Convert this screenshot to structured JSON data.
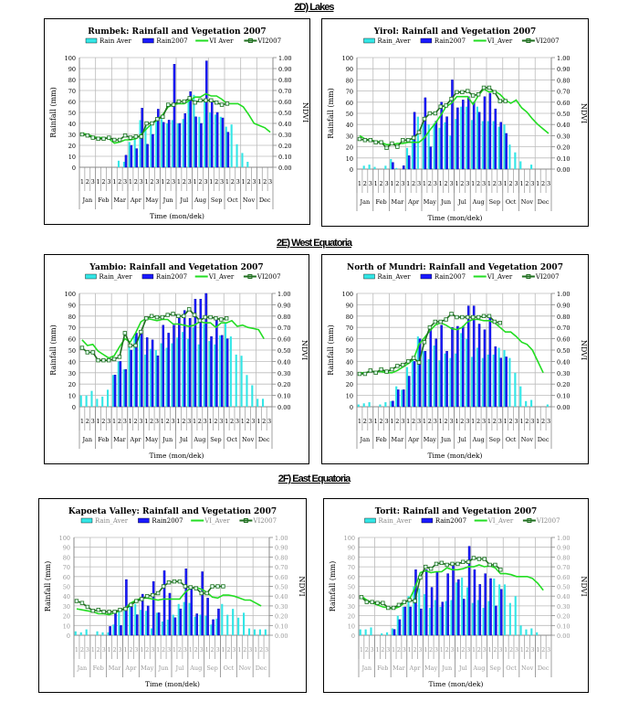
{
  "sections": [
    "2D) Lakes",
    "2E) West Equatoria",
    "2F) East Equatoria"
  ],
  "colors": {
    "rain_aver": "#33e6e6",
    "rain2007": "#1a1aff",
    "vi_aver": "#22dd22",
    "vi2007": "#1f6f1f",
    "grid": "#bbbbbb"
  },
  "chart_data": [
    {
      "type": "bar+line",
      "title": "Rumbek: Rainfall and Vegetation 2007",
      "legend": [
        "Rain Aver",
        "Rain2007",
        "VI Aver",
        "VI2007"
      ],
      "xlabel": "Time (mon/dek)",
      "ylabel": "Rainfall (mm)",
      "y2label": "NDVI",
      "ylim": [
        0,
        100
      ],
      "y2lim": [
        0,
        1
      ],
      "yticks": [
        "0",
        "10",
        "20",
        "30",
        "40",
        "50",
        "60",
        "70",
        "80",
        "90",
        "100"
      ],
      "y2ticks": [
        "0.00",
        "0.10",
        "0.20",
        "0.30",
        "0.40",
        "0.50",
        "0.60",
        "0.70",
        "0.80",
        "0.90",
        "1.00"
      ],
      "months": [
        "Jan",
        "Feb",
        "Mar",
        "Apr",
        "May",
        "Jun",
        "Jul",
        "Aug",
        "Sep",
        "Oct",
        "Nov",
        "Dec"
      ],
      "dekads": [
        "1",
        "2",
        "3"
      ],
      "rain_aver": [
        0,
        0,
        0,
        0,
        0,
        0,
        0,
        6,
        5,
        23,
        26,
        43,
        38,
        40,
        44,
        44,
        40,
        43,
        40,
        44,
        63,
        66,
        46,
        62,
        50,
        48,
        46,
        37,
        39,
        21,
        13,
        5,
        0,
        0,
        0,
        0
      ],
      "rain2007": [
        0,
        0,
        0,
        0,
        0,
        0,
        0,
        0,
        11,
        20,
        17,
        54,
        21,
        30,
        53,
        41,
        43,
        94,
        40,
        49,
        69,
        46,
        40,
        97,
        61,
        50,
        45,
        32,
        0,
        0,
        0,
        0,
        0,
        0,
        0,
        0
      ],
      "vi_aver": [
        0.31,
        0.3,
        0.28,
        0.27,
        0.27,
        0.26,
        0.22,
        0.23,
        0.25,
        0.25,
        0.26,
        0.3,
        0.35,
        0.4,
        0.43,
        0.48,
        0.55,
        0.57,
        0.58,
        0.58,
        0.61,
        0.64,
        0.64,
        0.67,
        0.65,
        0.65,
        0.62,
        0.58,
        0.58,
        0.58,
        0.55,
        0.48,
        0.4,
        0.38,
        0.36,
        0.32
      ],
      "vi2007": [
        0.3,
        0.29,
        0.27,
        0.26,
        0.26,
        0.27,
        0.25,
        0.25,
        0.29,
        0.27,
        0.28,
        0.28,
        0.4,
        0.4,
        0.44,
        0.46,
        0.57,
        0.57,
        0.6,
        0.6,
        0.63,
        0.59,
        0.61,
        0.61,
        0.61,
        0.59,
        0.57,
        0.58
      ]
    },
    {
      "type": "bar+line",
      "title": "Yirol: Rainfall and Vegetation 2007",
      "legend": [
        "Rain_Aver",
        "Rain2007",
        "VI_Aver",
        "VI2007"
      ],
      "xlabel": "Time (mon/dek)",
      "ylabel": "Rainfall (mm)",
      "y2label": "NDVI",
      "ylim": [
        0,
        100
      ],
      "y2lim": [
        0,
        1
      ],
      "yticks": [
        "0",
        "10",
        "20",
        "30",
        "40",
        "50",
        "60",
        "70",
        "80",
        "90",
        "100"
      ],
      "y2ticks": [
        "0.00",
        "0.10",
        "0.20",
        "0.30",
        "0.40",
        "0.50",
        "0.60",
        "0.70",
        "0.80",
        "0.90",
        "1.00"
      ],
      "months": [
        "Jan",
        "Feb",
        "Mar",
        "Apr",
        "May",
        "Jun",
        "Jul",
        "Aug",
        "Sep",
        "Oct",
        "Nov",
        "Dec"
      ],
      "dekads": [
        "1",
        "2",
        "3"
      ],
      "rain_aver": [
        0,
        3,
        4,
        2,
        0,
        3,
        9,
        1,
        0,
        19,
        27,
        47,
        41,
        40,
        41,
        37,
        42,
        30,
        45,
        56,
        56,
        44,
        56,
        43,
        43,
        43,
        38,
        40,
        22,
        15,
        7,
        0,
        4,
        0,
        0,
        0
      ],
      "rain2007": [
        0,
        0,
        0,
        0,
        0,
        0,
        6,
        0,
        3,
        12,
        51,
        0,
        64,
        20,
        43,
        60,
        47,
        80,
        55,
        62,
        65,
        60,
        51,
        65,
        68,
        54,
        42,
        32,
        0,
        0,
        0,
        0,
        0,
        0,
        0,
        0
      ],
      "vi_aver": [
        0.3,
        0.27,
        0.26,
        0.25,
        0.24,
        0.22,
        0.22,
        0.23,
        0.23,
        0.24,
        0.24,
        0.24,
        0.28,
        0.35,
        0.41,
        0.48,
        0.56,
        0.59,
        0.65,
        0.65,
        0.65,
        0.58,
        0.66,
        0.72,
        0.69,
        0.7,
        0.67,
        0.62,
        0.59,
        0.62,
        0.55,
        0.51,
        0.45,
        0.4,
        0.36,
        0.32
      ],
      "vi2007": [
        0.27,
        0.26,
        0.26,
        0.24,
        0.24,
        0.19,
        0.23,
        0.2,
        0.26,
        0.26,
        0.28,
        0.33,
        0.45,
        0.5,
        0.5,
        0.56,
        0.57,
        0.63,
        0.69,
        0.69,
        0.7,
        0.66,
        0.67,
        0.73,
        0.73,
        0.69,
        0.61,
        0.61
      ]
    },
    {
      "type": "bar+line",
      "title": "Yambio: Rainfall and Vegetation 2007",
      "legend": [
        "Rain_Aver",
        "Rain2007",
        "VI_Aver",
        "VI2007"
      ],
      "xlabel": "Time (mon/dek)",
      "ylabel": "Rainfall (mm)",
      "y2label": "NDVI",
      "ylim": [
        0,
        100
      ],
      "y2lim": [
        0,
        1
      ],
      "yticks": [
        "0",
        "10",
        "20",
        "30",
        "40",
        "50",
        "60",
        "70",
        "80",
        "90",
        "100"
      ],
      "y2ticks": [
        "0.00",
        "0.10",
        "0.20",
        "0.30",
        "0.40",
        "0.50",
        "0.60",
        "0.70",
        "0.80",
        "0.90",
        "1.00"
      ],
      "months": [
        "Jan",
        "Feb",
        "Mar",
        "Apr",
        "May",
        "Jun",
        "Jul",
        "Aug",
        "Sep",
        "Oct",
        "Nov",
        "Dec"
      ],
      "dekads": [
        "1",
        "2",
        "3"
      ],
      "rain_aver": [
        10,
        10,
        14,
        7,
        9,
        15,
        28,
        40,
        33,
        55,
        62,
        62,
        46,
        51,
        50,
        56,
        52,
        56,
        61,
        66,
        60,
        70,
        55,
        73,
        58,
        55,
        63,
        74,
        62,
        46,
        45,
        28,
        19,
        7,
        7,
        0
      ],
      "rain2007": [
        0,
        0,
        0,
        0,
        0,
        0,
        28,
        40,
        33,
        50,
        65,
        65,
        61,
        59,
        45,
        72,
        65,
        72,
        78,
        85,
        78,
        95,
        95,
        100,
        62,
        77,
        63,
        60,
        0,
        0,
        0,
        0,
        0,
        0,
        0,
        0
      ],
      "vi_aver": [
        0.59,
        0.54,
        0.55,
        0.49,
        0.46,
        0.43,
        0.45,
        0.53,
        0.6,
        0.57,
        0.65,
        0.75,
        0.78,
        0.77,
        0.76,
        0.77,
        0.77,
        0.73,
        0.73,
        0.72,
        0.71,
        0.72,
        0.75,
        0.74,
        0.74,
        0.7,
        0.74,
        0.74,
        0.76,
        0.71,
        0.72,
        0.7,
        0.69,
        0.68,
        0.6
      ],
      "vi2007": [
        0.52,
        0.48,
        0.48,
        0.41,
        0.41,
        0.41,
        0.42,
        0.44,
        0.65,
        0.54,
        0.54,
        0.66,
        0.78,
        0.8,
        0.79,
        0.79,
        0.81,
        0.82,
        0.8,
        0.8,
        0.86,
        0.81,
        0.76,
        0.79,
        0.79,
        0.78,
        0.77,
        0.78
      ]
    },
    {
      "type": "bar+line",
      "title": "North of Mundri: Rainfall and Vegetation 2007",
      "legend": [
        "Rain_Aver",
        "Rain2007",
        "VI_Aver",
        "VI2007"
      ],
      "xlabel": "Time (mon/dek)",
      "ylabel": "Rainfall (mm)",
      "y2label": "NDVI",
      "ylim": [
        0,
        100
      ],
      "y2lim": [
        0,
        1
      ],
      "yticks": [
        "0",
        "10",
        "20",
        "30",
        "40",
        "50",
        "60",
        "70",
        "80",
        "90",
        "100"
      ],
      "y2ticks": [
        "0.00",
        "0.10",
        "0.20",
        "0.30",
        "0.40",
        "0.50",
        "0.60",
        "0.70",
        "0.80",
        "0.90",
        "1.00"
      ],
      "months": [
        "Jan",
        "Feb",
        "Mar",
        "Apr",
        "May",
        "Jun",
        "Jul",
        "Aug",
        "Sep",
        "Oct",
        "Nov",
        "Dec"
      ],
      "dekads": [
        "1",
        "2",
        "3"
      ],
      "rain_aver": [
        2,
        3,
        4,
        0,
        2,
        4,
        5,
        18,
        15,
        35,
        43,
        62,
        49,
        42,
        54,
        41,
        47,
        43,
        47,
        65,
        60,
        44,
        52,
        43,
        46,
        46,
        52,
        50,
        43,
        30,
        18,
        5,
        6,
        0,
        0,
        2
      ],
      "rain2007": [
        0,
        0,
        0,
        0,
        0,
        0,
        5,
        15,
        15,
        27,
        40,
        60,
        49,
        70,
        60,
        72,
        49,
        70,
        71,
        71,
        89,
        89,
        73,
        68,
        80,
        53,
        43,
        44,
        0,
        0,
        0,
        0,
        0,
        0,
        0,
        0
      ],
      "vi_aver": [
        0.3,
        0.3,
        0.31,
        0.31,
        0.31,
        0.3,
        0.3,
        0.32,
        0.35,
        0.38,
        0.42,
        0.55,
        0.61,
        0.67,
        0.72,
        0.74,
        0.72,
        0.69,
        0.68,
        0.7,
        0.75,
        0.77,
        0.77,
        0.76,
        0.76,
        0.74,
        0.7,
        0.66,
        0.66,
        0.62,
        0.57,
        0.55,
        0.5,
        0.4,
        0.3
      ],
      "vi2007": [
        0.29,
        0.29,
        0.32,
        0.3,
        0.33,
        0.31,
        0.33,
        0.36,
        0.37,
        0.4,
        0.43,
        0.39,
        0.57,
        0.7,
        0.75,
        0.75,
        0.77,
        0.82,
        0.79,
        0.79,
        0.79,
        0.79,
        0.79,
        0.8,
        0.8,
        0.75,
        0.74
      ]
    },
    {
      "type": "bar+line",
      "title": "Kapoeta Valley: Rainfall and Vegetation 2007",
      "legend": [
        "Rain_Aver",
        "Rain2007",
        "VI_Aver",
        "VI2007"
      ],
      "xlabel": "Time (mon/dek)",
      "ylabel": "Rainfall (mm)",
      "y2label": "NDVI",
      "ylim": [
        0,
        100
      ],
      "y2lim": [
        0,
        1
      ],
      "yticks": [
        "0",
        "10",
        "20",
        "30",
        "40",
        "50",
        "60",
        "70",
        "80",
        "90",
        "100"
      ],
      "y2ticks": [
        "0.00",
        "0.10",
        "0.20",
        "0.30",
        "0.40",
        "0.50",
        "0.60",
        "0.70",
        "0.80",
        "0.90",
        "1.00"
      ],
      "months": [
        "Jan",
        "Feb",
        "Mar",
        "Apr",
        "May",
        "Jun",
        "Jul",
        "Aug",
        "Sep",
        "Oct",
        "Nov",
        "Dec"
      ],
      "dekads": [
        "1",
        "2",
        "3"
      ],
      "rain_aver": [
        4,
        3,
        6,
        0,
        4,
        3,
        3,
        11,
        24,
        25,
        30,
        32,
        26,
        25,
        7,
        23,
        14,
        16,
        21,
        32,
        34,
        33,
        19,
        21,
        20,
        11,
        17,
        32,
        21,
        27,
        18,
        23,
        7,
        6,
        6,
        6
      ],
      "rain2007": [
        0,
        0,
        0,
        0,
        0,
        0,
        9,
        25,
        10,
        57,
        29,
        21,
        42,
        30,
        55,
        23,
        66,
        43,
        18,
        27,
        68,
        50,
        22,
        65,
        38,
        16,
        27,
        0,
        0,
        0,
        0,
        0,
        0,
        0,
        0,
        0
      ],
      "vi_aver": [
        0.27,
        0.26,
        0.25,
        0.24,
        0.22,
        0.22,
        0.21,
        0.23,
        0.25,
        0.28,
        0.33,
        0.36,
        0.38,
        0.38,
        0.37,
        0.36,
        0.37,
        0.37,
        0.37,
        0.37,
        0.44,
        0.48,
        0.49,
        0.47,
        0.44,
        0.39,
        0.38,
        0.41,
        0.41,
        0.4,
        0.38,
        0.36,
        0.36,
        0.33,
        0.3
      ],
      "vi2007": [
        0.35,
        0.33,
        0.29,
        0.25,
        0.26,
        0.24,
        0.24,
        0.24,
        0.26,
        0.27,
        0.31,
        0.35,
        0.37,
        0.4,
        0.41,
        0.43,
        0.5,
        0.54,
        0.55,
        0.55,
        0.5,
        0.49,
        0.48,
        0.43,
        0.43,
        0.5,
        0.5,
        0.5
      ]
    },
    {
      "type": "bar+line",
      "title": "Torit: Rainfall and Vegetation 2007",
      "legend": [
        "Rain_Aver",
        "Rain2007",
        "VI_Aver",
        "VI2007"
      ],
      "xlabel": "Time (mon/dek)",
      "ylabel": "Rainfall (mm)",
      "y2label": "NDVI",
      "ylim": [
        0,
        100
      ],
      "y2lim": [
        0,
        1
      ],
      "yticks": [
        "0",
        "10",
        "20",
        "30",
        "40",
        "50",
        "60",
        "70",
        "80",
        "90",
        "100"
      ],
      "y2ticks": [
        "0.00",
        "0.10",
        "0.20",
        "0.30",
        "0.40",
        "0.50",
        "0.60",
        "0.70",
        "0.80",
        "0.90",
        "1.00"
      ],
      "months": [
        "Jan",
        "Feb",
        "Mar",
        "Apr",
        "May",
        "Jun",
        "Jul",
        "Aug",
        "Sep",
        "Oct",
        "Nov",
        "Dec"
      ],
      "dekads": [
        "1",
        "2",
        "3"
      ],
      "rain_aver": [
        6,
        6,
        8,
        0,
        2,
        3,
        7,
        20,
        29,
        40,
        50,
        48,
        42,
        28,
        36,
        29,
        35,
        36,
        54,
        59,
        49,
        33,
        36,
        28,
        35,
        58,
        52,
        52,
        33,
        40,
        10,
        6,
        7,
        3,
        0,
        0
      ],
      "rain2007": [
        0,
        0,
        0,
        0,
        0,
        0,
        6,
        16,
        29,
        29,
        67,
        27,
        67,
        49,
        65,
        34,
        63,
        73,
        57,
        37,
        91,
        67,
        52,
        63,
        58,
        30,
        47,
        0,
        0,
        0,
        0,
        0,
        0,
        0,
        0,
        0
      ],
      "vi_aver": [
        0.4,
        0.36,
        0.33,
        0.31,
        0.29,
        0.28,
        0.27,
        0.29,
        0.33,
        0.37,
        0.48,
        0.64,
        0.66,
        0.64,
        0.65,
        0.65,
        0.69,
        0.67,
        0.67,
        0.68,
        0.7,
        0.7,
        0.72,
        0.7,
        0.71,
        0.69,
        0.63,
        0.63,
        0.62,
        0.6,
        0.6,
        0.6,
        0.58,
        0.53,
        0.46
      ],
      "vi2007": [
        0.39,
        0.34,
        0.34,
        0.33,
        0.33,
        0.28,
        0.28,
        0.31,
        0.34,
        0.36,
        0.35,
        0.59,
        0.7,
        0.68,
        0.73,
        0.74,
        0.72,
        0.73,
        0.73,
        0.75,
        0.75,
        0.79,
        0.78,
        0.78,
        0.72,
        0.72,
        0.67
      ]
    }
  ]
}
